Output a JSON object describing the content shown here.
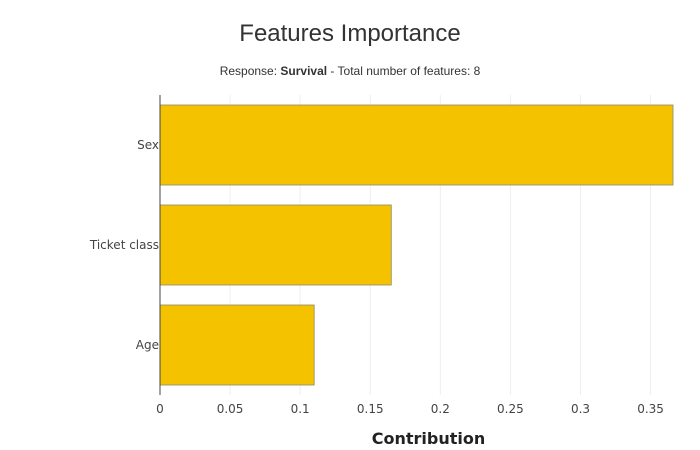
{
  "chart_data": {
    "type": "bar",
    "orientation": "horizontal",
    "title": "Features Importance",
    "subtitle": {
      "prefix": "Response: ",
      "response": "Survival",
      "suffix": " - Total number of features: 8"
    },
    "categories": [
      "Sex",
      "Ticket class",
      "Age"
    ],
    "values": [
      0.366,
      0.165,
      0.11
    ],
    "xlabel": "Contribution",
    "ylabel": "",
    "xlim": [
      0,
      0.366
    ],
    "xticks": [
      0,
      0.05,
      0.1,
      0.15,
      0.2,
      0.25,
      0.3,
      0.35
    ],
    "xtick_labels": [
      "0",
      "0.05",
      "0.1",
      "0.15",
      "0.2",
      "0.25",
      "0.3",
      "0.35"
    ],
    "grid": true,
    "legend": "none",
    "bar_color": "#f5c200",
    "bar_edge_color": "#8a8a6a"
  }
}
